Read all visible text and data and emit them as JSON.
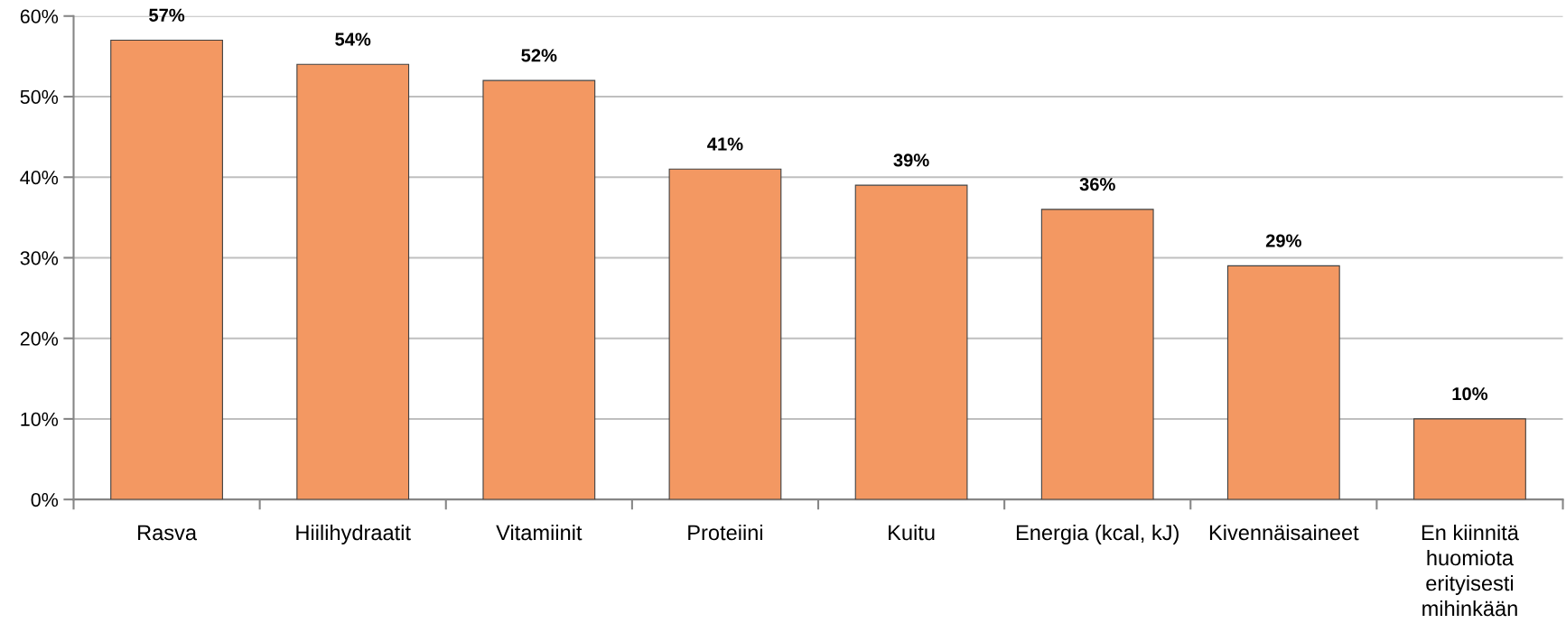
{
  "chart_data": {
    "type": "bar",
    "categories": [
      "Rasva",
      "Hiilihydraatit",
      "Vitamiinit",
      "Proteiini",
      "Kuitu",
      "Energia (kcal, kJ)",
      "Kivennäisaineet",
      "En kiinnitä\nhuomiota\nerityisesti\nmihinkään"
    ],
    "values": [
      57,
      54,
      52,
      41,
      39,
      36,
      29,
      10
    ],
    "value_labels": [
      "57%",
      "54%",
      "52%",
      "41%",
      "39%",
      "36%",
      "29%",
      "10%"
    ],
    "color": "#f39862",
    "ylim": [
      0,
      60
    ],
    "yticks": [
      {
        "value": 0,
        "label": "0%"
      },
      {
        "value": 10,
        "label": "10%"
      },
      {
        "value": 20,
        "label": "20%"
      },
      {
        "value": 30,
        "label": "30%"
      },
      {
        "value": 40,
        "label": "40%"
      },
      {
        "value": 50,
        "label": "50%"
      },
      {
        "value": 60,
        "label": "60%"
      }
    ],
    "grid": "y"
  }
}
